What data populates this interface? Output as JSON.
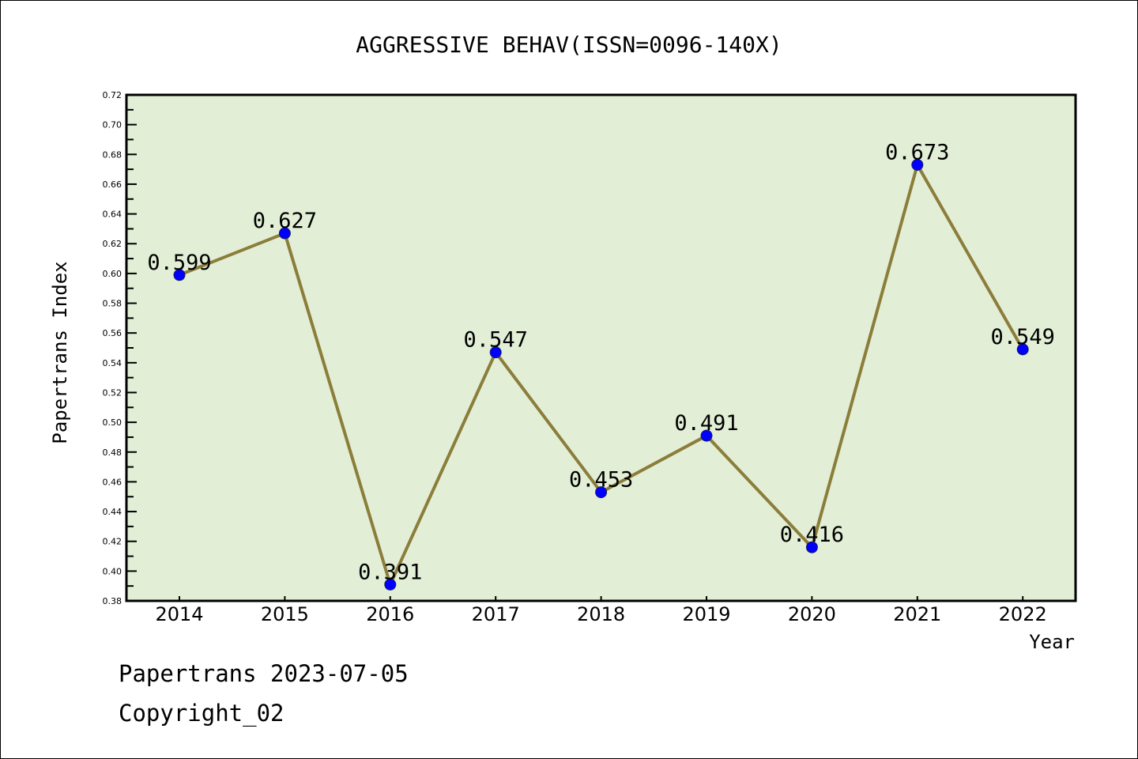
{
  "chart_data": {
    "type": "line",
    "title": "AGGRESSIVE BEHAV(ISSN=0096-140X)",
    "xlabel": "Year",
    "ylabel": "Papertrans Index",
    "categories": [
      "2014",
      "2015",
      "2016",
      "2017",
      "2018",
      "2019",
      "2020",
      "2021",
      "2022"
    ],
    "values": [
      0.599,
      0.627,
      0.391,
      0.547,
      0.453,
      0.491,
      0.416,
      0.673,
      0.549
    ],
    "data_labels": [
      "0.599",
      "0.627",
      "0.391",
      "0.547",
      "0.453",
      "0.491",
      "0.416",
      "0.673",
      "0.549"
    ],
    "ylim": [
      0.38,
      0.72
    ],
    "yticks": [
      "0.38",
      "0.40",
      "0.42",
      "0.44",
      "0.46",
      "0.48",
      "0.50",
      "0.52",
      "0.54",
      "0.56",
      "0.58",
      "0.60",
      "0.62",
      "0.64",
      "0.66",
      "0.68",
      "0.70",
      "0.72"
    ],
    "grid": false,
    "colors": {
      "line": "#8b7d3a",
      "marker": "#0000ff",
      "plot_bg": "#e2efd6"
    }
  },
  "footer": {
    "line1": "Papertrans 2023-07-05",
    "line2": "Copyright_02"
  }
}
